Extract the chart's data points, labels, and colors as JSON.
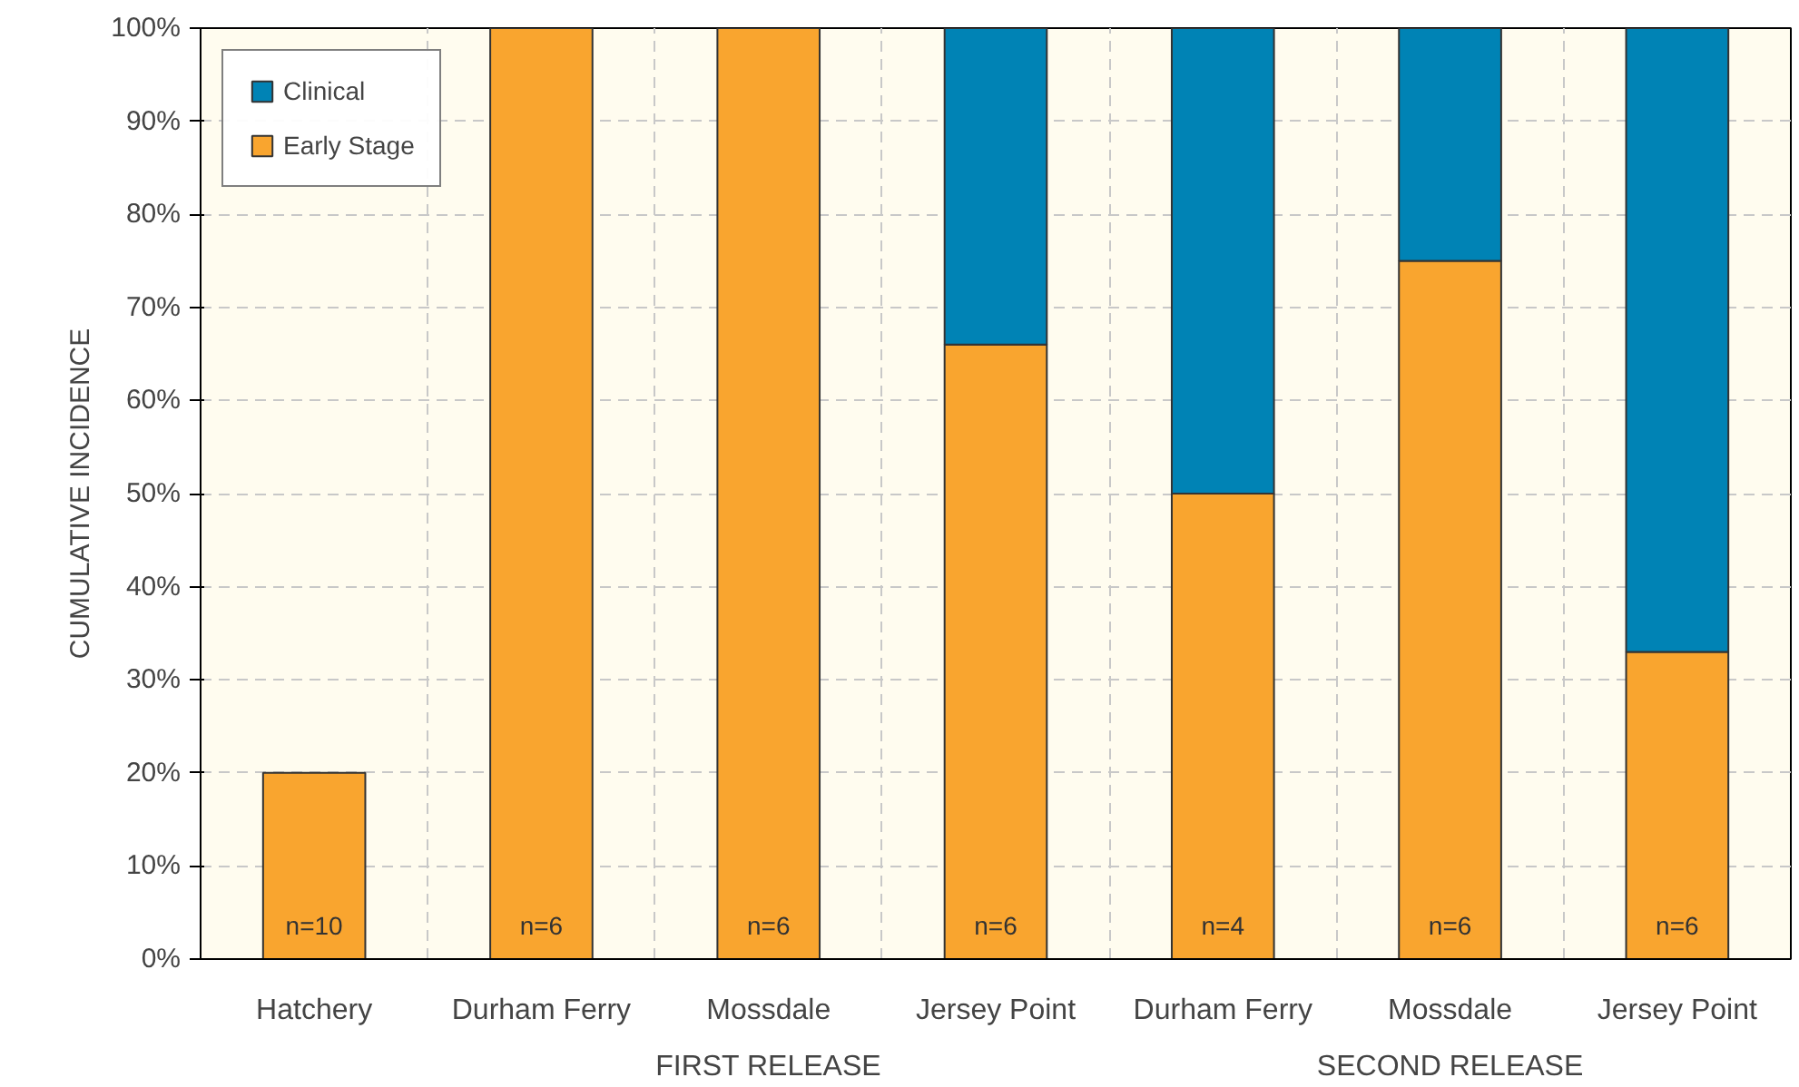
{
  "chart_data": {
    "type": "bar",
    "stacked": true,
    "ylabel": "CUMULATIVE INCIDENCE",
    "categories": [
      "Hatchery",
      "Durham Ferry",
      "Mossdale",
      "Jersey Point",
      "Durham Ferry",
      "Mossdale",
      "Jersey Point"
    ],
    "series": [
      {
        "name": "Early Stage",
        "color": "#f9a52f",
        "values": [
          20,
          100,
          100,
          66,
          50,
          75,
          33
        ]
      },
      {
        "name": "Clinical",
        "color": "#0083b5",
        "values": [
          null,
          null,
          null,
          34,
          50,
          25,
          67
        ]
      }
    ],
    "ylim": [
      0,
      100
    ],
    "yticks": [
      {
        "value": 0,
        "label": "0%"
      },
      {
        "value": 10,
        "label": "10%"
      },
      {
        "value": 20,
        "label": "20%"
      },
      {
        "value": 30,
        "label": "30%"
      },
      {
        "value": 40,
        "label": "40%"
      },
      {
        "value": 50,
        "label": "50%"
      },
      {
        "value": 60,
        "label": "60%"
      },
      {
        "value": 70,
        "label": "70%"
      },
      {
        "value": 80,
        "label": "80%"
      },
      {
        "value": 90,
        "label": "90%"
      },
      {
        "value": 100,
        "label": "100%"
      }
    ],
    "grid": true,
    "legend": "top left",
    "annotations": [
      "n=10",
      "n=6",
      "n=6",
      "n=6",
      "n=4",
      "n=6",
      "n=6",
      "FIRST RELEASE",
      "SECOND RELEASE"
    ]
  }
}
